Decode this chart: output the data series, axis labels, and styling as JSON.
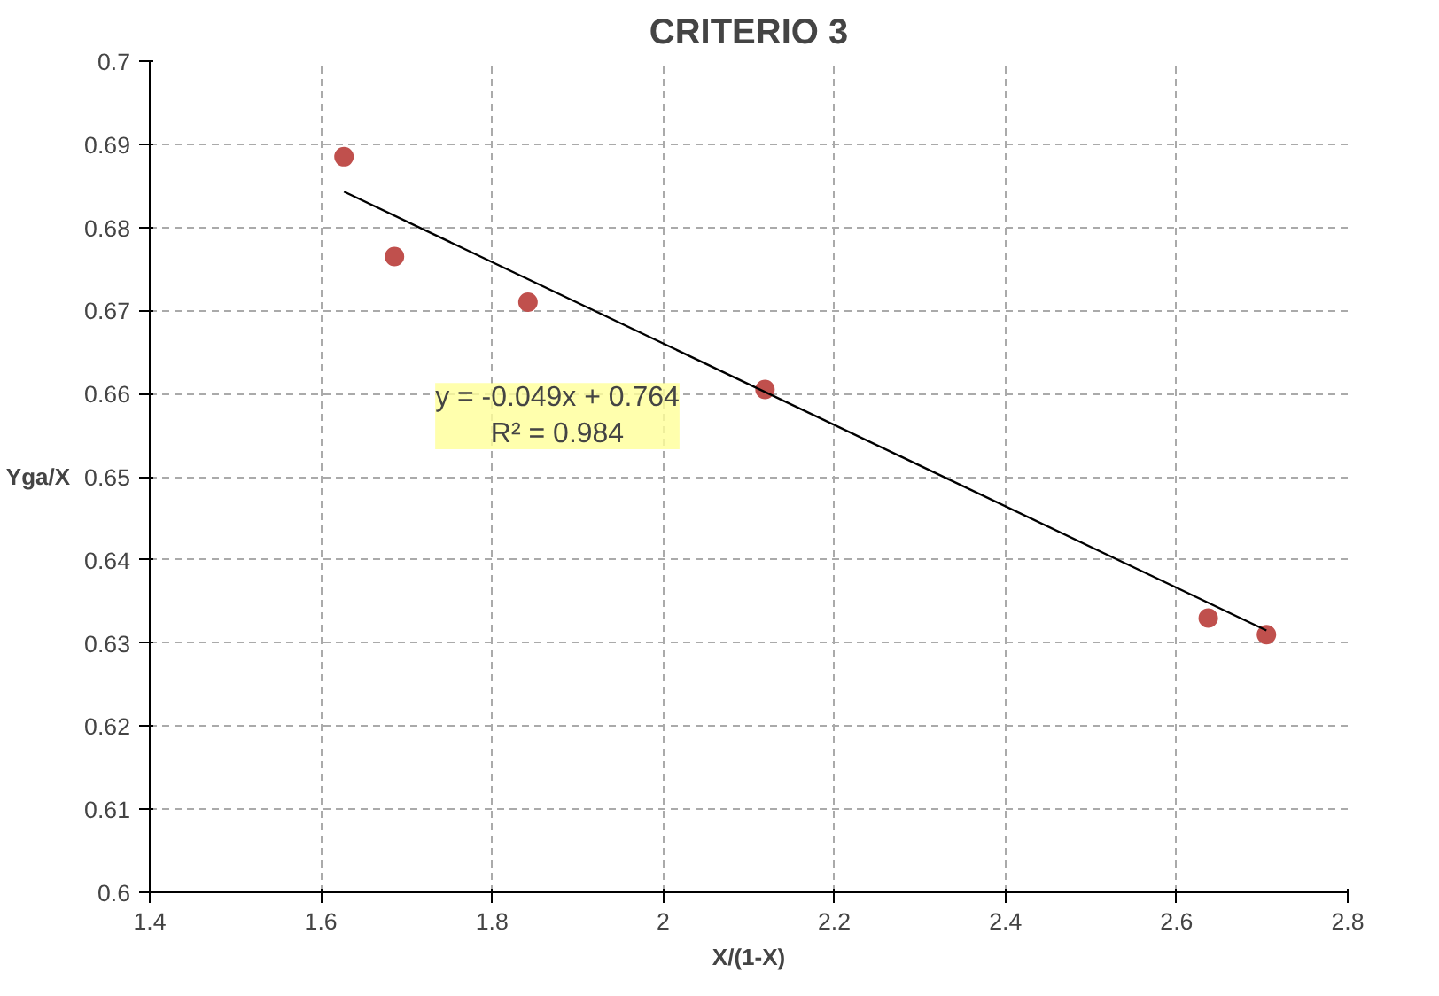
{
  "chart_data": {
    "type": "scatter",
    "title": "CRITERIO 3",
    "xlabel": "X/(1-X)",
    "ylabel": "Yga/X",
    "xlim": [
      1.4,
      2.8
    ],
    "xticks": [
      1.4,
      1.6,
      1.8,
      2,
      2.2,
      2.4,
      2.6,
      2.8
    ],
    "ylim": [
      0.6,
      0.7
    ],
    "yticks": [
      0.6,
      0.61,
      0.62,
      0.63,
      0.64,
      0.65,
      0.66,
      0.67,
      0.68,
      0.69,
      0.7
    ],
    "grid": true,
    "series": [
      {
        "marker": "circle",
        "color": "#c0504d",
        "x": [
          1.627,
          1.686,
          1.842,
          2.119,
          2.637,
          2.705
        ],
        "values": [
          0.6885,
          0.6765,
          0.671,
          0.6605,
          0.633,
          0.631
        ]
      },
      {
        "type": "line",
        "color": "#000000",
        "line_style": "solid",
        "x": [
          1.627,
          2.705
        ],
        "values": [
          0.6843,
          0.6315
        ]
      }
    ],
    "annotations": [
      "y = -0.049x + 0.764\nR² = 0.984"
    ]
  }
}
